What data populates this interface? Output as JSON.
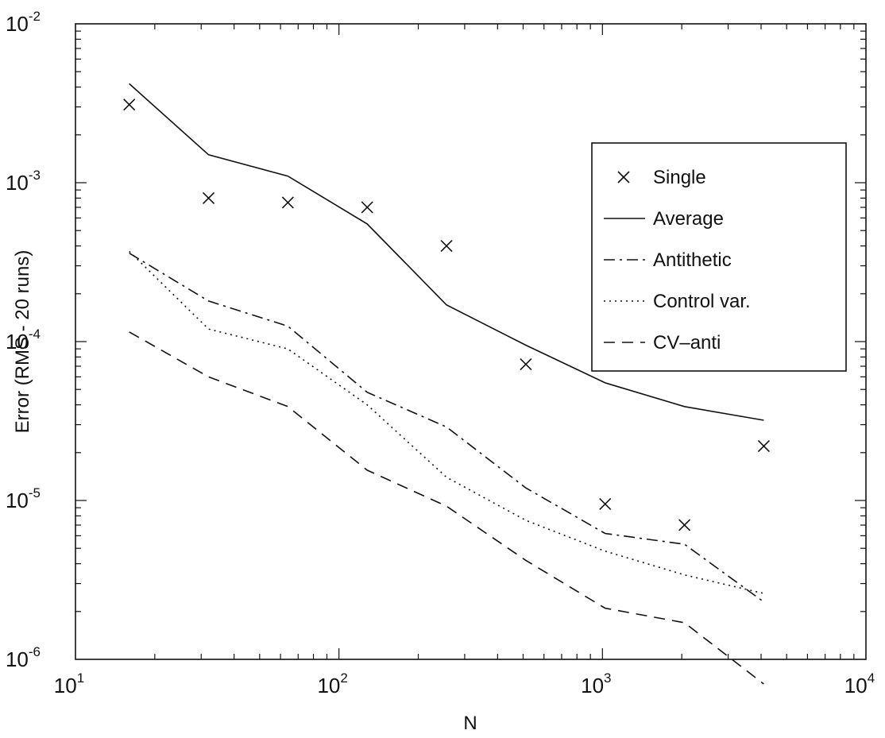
{
  "chart_data": {
    "type": "line",
    "title": "",
    "xlabel": "N",
    "ylabel": "Error (RMS - 20 runs)",
    "xscale": "log",
    "yscale": "log",
    "xlim": [
      10,
      10000
    ],
    "ylim": [
      1e-06,
      0.01
    ],
    "grid": false,
    "legend_position": "top-right",
    "x_ticks": [
      {
        "base": "10",
        "exp": "1"
      },
      {
        "base": "10",
        "exp": "2"
      },
      {
        "base": "10",
        "exp": "3"
      },
      {
        "base": "10",
        "exp": "4"
      }
    ],
    "y_ticks": [
      {
        "base": "10",
        "exp": "-6"
      },
      {
        "base": "10",
        "exp": "-5"
      },
      {
        "base": "10",
        "exp": "-4"
      },
      {
        "base": "10",
        "exp": "-3"
      },
      {
        "base": "10",
        "exp": "-2"
      }
    ],
    "x": [
      16,
      32,
      64,
      128,
      256,
      512,
      1024,
      2048,
      4096
    ],
    "series": [
      {
        "name": "Single",
        "style": "marker-x",
        "color": "#111111",
        "values": [
          0.0031,
          0.0008,
          0.00075,
          0.0007,
          0.0004,
          7.2e-05,
          9.5e-06,
          7e-06,
          2.2e-05
        ]
      },
      {
        "name": "Average",
        "style": "solid",
        "color": "#111111",
        "values": [
          0.0042,
          0.0015,
          0.0011,
          0.00055,
          0.00017,
          9.5e-05,
          5.5e-05,
          3.9e-05,
          3.2e-05
        ]
      },
      {
        "name": "Antithetic",
        "style": "dashdot",
        "color": "#111111",
        "values": [
          0.00036,
          0.00018,
          0.000125,
          4.8e-05,
          2.9e-05,
          1.2e-05,
          6.2e-06,
          5.3e-06,
          2.3e-06
        ]
      },
      {
        "name": "Control var.",
        "style": "dotted",
        "color": "#111111",
        "values": [
          0.00037,
          0.00012,
          9e-05,
          4e-05,
          1.4e-05,
          7.5e-06,
          4.8e-06,
          3.4e-06,
          2.6e-06
        ]
      },
      {
        "name": "CV–anti",
        "style": "dashed",
        "color": "#111111",
        "values": [
          0.000115,
          6e-05,
          3.9e-05,
          1.55e-05,
          9.2e-06,
          4.2e-06,
          2.1e-06,
          1.7e-06,
          7e-07
        ]
      }
    ]
  }
}
